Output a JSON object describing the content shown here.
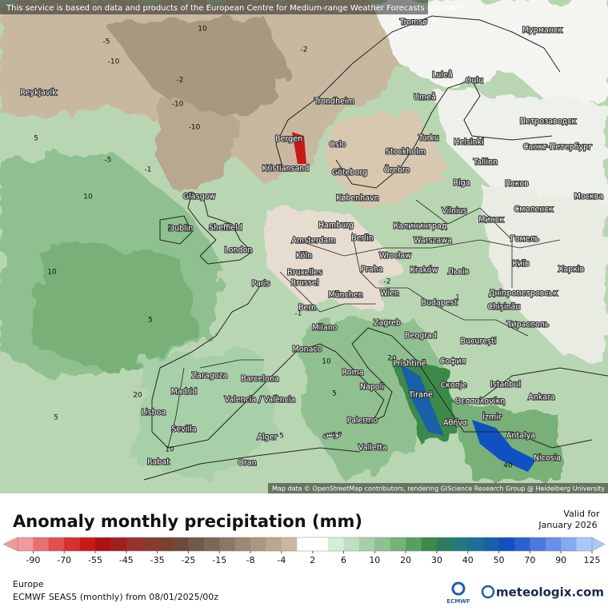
{
  "header": {
    "notice": "This service is based on data and products of the European Centre for Medium-range Weather Forecasts (ECMWF)"
  },
  "map": {
    "attribution": "Map data © OpenStreetMap contributors, rendering GIScience Research Group @ Heidelberg University",
    "cities": [
      "Reykjavík",
      "Tromsø",
      "Мурманск",
      "Luleå",
      "Oulu",
      "Trondheim",
      "Umeå",
      "Петрозаводск",
      "Bergen",
      "Turku",
      "Helsinki",
      "Oslo",
      "Stockholm",
      "Санкт-Петербург",
      "Kristiansand",
      "Göteborg",
      "Örebro",
      "Tallinn",
      "Glasgow",
      "København",
      "Riga",
      "Псков",
      "Москва",
      "Vilnius",
      "Смоленск",
      "Dublin",
      "Sheffield",
      "Hamburg",
      "Калининград",
      "Минск",
      "Гомель",
      "Amsterdam",
      "Berlin",
      "Warszawa",
      "London",
      "Köln",
      "Wrocław",
      "Київ",
      "Bruxelles",
      "Brussel",
      "Praha",
      "Kraków",
      "Львів",
      "Харків",
      "Paris",
      "München",
      "Wien",
      "Дніпропетровськ",
      "Budapest",
      "Chișinău",
      "Bern",
      "Milano",
      "Zagreb",
      "Тирасполь",
      "Beograd",
      "București",
      "Monaco",
      "Prishtinë",
      "София",
      "Zaragoza",
      "Barcelona",
      "Roma",
      "Napoli",
      "Istanbul",
      "Скопје",
      "Madrid",
      "Tiranë",
      "Θεσσαλονίκη",
      "Ankara",
      "Valencia / València",
      "Lisboa",
      "Palermo",
      "Αθήνα",
      "İzmir",
      "Sevilla",
      "Alger",
      "تونس",
      "Valletta",
      "Antalya",
      "Nicosia",
      "Rabat",
      "Oran"
    ],
    "contour_labels": [
      -5,
      -10,
      -10,
      -2,
      -10,
      -1,
      5,
      10,
      -5,
      -2,
      10,
      5,
      -1,
      2,
      10,
      5,
      20,
      10,
      5,
      20,
      5,
      10,
      40,
      -2,
      1
    ]
  },
  "legend": {
    "title": "Anomaly monthly precipitation (mm)",
    "valid_label": "Valid for",
    "valid_date": "January 2026",
    "ticks": [
      -90,
      -70,
      -55,
      -45,
      -35,
      -25,
      -15,
      -8,
      -4,
      2,
      6,
      10,
      20,
      30,
      40,
      50,
      70,
      90,
      125
    ],
    "colors": [
      "#f09a9a",
      "#e87070",
      "#e05050",
      "#d83030",
      "#c81818",
      "#b01010",
      "#a02020",
      "#983030",
      "#8a3a30",
      "#7a4030",
      "#6b4a3a",
      "#6e5a4a",
      "#7a6855",
      "#8a7862",
      "#9a8a72",
      "#a89880",
      "#b8a890",
      "#c8b8a0",
      "#ffffff",
      "#ffffff",
      "#d8ecd8",
      "#c0e0c0",
      "#a8d0a8",
      "#90c090",
      "#78b078",
      "#58a060",
      "#3a8a48",
      "#2e7a60",
      "#207a80",
      "#1a7090",
      "#1860a8",
      "#1050c0",
      "#2a60d0",
      "#4a78e0",
      "#6890e8",
      "#88a8f0",
      "#a8c8f8"
    ]
  },
  "footer": {
    "region": "Europe",
    "model": "ECMWF SEAS5 (monthly) from 08/01/2025/00z",
    "ecmwf": "ECMWF",
    "brand": "meteologix.com"
  }
}
